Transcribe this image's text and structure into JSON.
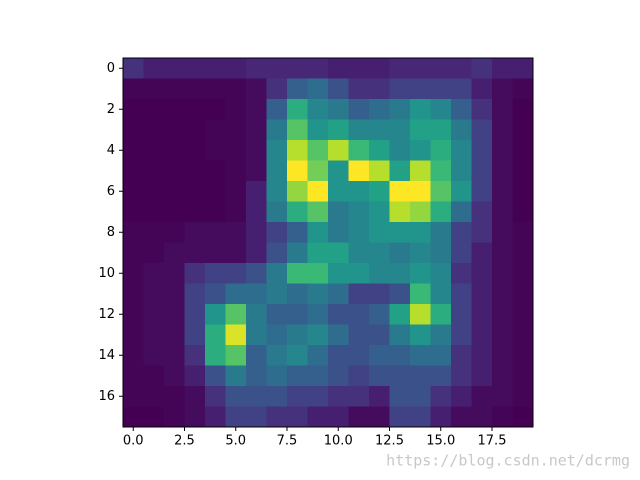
{
  "chart_data": {
    "type": "heatmap",
    "colormap": "viridis",
    "xlim": [
      -0.5,
      19.5
    ],
    "ylim": [
      17.5,
      -0.5
    ],
    "xticks": [
      {
        "value": 0,
        "label": "0.0"
      },
      2.5,
      {
        "value": 5,
        "label": "5.0"
      },
      7.5,
      {
        "value": 10,
        "label": "10.0"
      },
      12.5,
      {
        "value": 15,
        "label": "15.0"
      },
      17.5
    ],
    "yticks": [
      0,
      2,
      4,
      6,
      8,
      10,
      12,
      14,
      16
    ],
    "values": [
      [
        1.5,
        1,
        1,
        1,
        1,
        1,
        1.2,
        1.2,
        1.2,
        1.2,
        1,
        1,
        1,
        1.2,
        1.2,
        1.2,
        1.2,
        1.5,
        1,
        1
      ],
      [
        0.3,
        0.3,
        0.3,
        0.3,
        0.3,
        0.3,
        0.5,
        1.5,
        3,
        3.5,
        2.5,
        1.5,
        1.5,
        2,
        2,
        2,
        2,
        1,
        0.5,
        0.3
      ],
      [
        0.2,
        0.2,
        0.2,
        0.2,
        0.2,
        0.3,
        0.5,
        3,
        6,
        4.5,
        4,
        3,
        3.5,
        4,
        5,
        4.5,
        3,
        1.5,
        0.5,
        0.2
      ],
      [
        0.2,
        0.2,
        0.2,
        0.2,
        0.3,
        0.3,
        0.5,
        4,
        7,
        5,
        5.5,
        4.5,
        4.5,
        4.5,
        5.5,
        5.5,
        4,
        2,
        0.5,
        0.2
      ],
      [
        0.2,
        0.2,
        0.2,
        0.2,
        0.3,
        0.3,
        0.5,
        4.5,
        8.5,
        7,
        8.5,
        6.5,
        5.5,
        4.5,
        5,
        6,
        4.5,
        2,
        0.5,
        0.2
      ],
      [
        0.2,
        0.2,
        0.2,
        0.2,
        0.2,
        0.3,
        0.5,
        4.5,
        9.5,
        7.5,
        5,
        9.5,
        8.5,
        5.5,
        8.5,
        6.5,
        4.5,
        2,
        0.5,
        0.2
      ],
      [
        0.2,
        0.2,
        0.2,
        0.2,
        0.2,
        0.3,
        1,
        4.5,
        8,
        9.5,
        5,
        5,
        5.5,
        9.5,
        9.5,
        7,
        5,
        2,
        0.5,
        0.2
      ],
      [
        0.2,
        0.2,
        0.2,
        0.2,
        0.2,
        0.3,
        1,
        4,
        6,
        7,
        4,
        4.5,
        5,
        8.5,
        8,
        6,
        3.5,
        1.5,
        0.5,
        0.2
      ],
      [
        0.3,
        0.3,
        0.3,
        0.5,
        0.5,
        0.5,
        1,
        2,
        3,
        5,
        4,
        4.5,
        5,
        5,
        5,
        4,
        2,
        1.5,
        0.5,
        0.3
      ],
      [
        0.3,
        0.3,
        0.5,
        0.5,
        0.5,
        0.5,
        1,
        2.5,
        4,
        5.5,
        5.5,
        4.5,
        4.5,
        4,
        4.5,
        4,
        2,
        1,
        0.5,
        0.3
      ],
      [
        0.3,
        0.5,
        0.5,
        1.5,
        2,
        2,
        2.5,
        4,
        6.5,
        6.5,
        5,
        5,
        4.5,
        4.5,
        5,
        4.5,
        1.5,
        1,
        0.5,
        0.3
      ],
      [
        0.3,
        0.5,
        0.5,
        2,
        2.5,
        3.5,
        3.5,
        4,
        3.5,
        4,
        3.5,
        2,
        2,
        2.5,
        6.5,
        4.5,
        2,
        1,
        0.5,
        0.3
      ],
      [
        0.3,
        0.5,
        0.5,
        2,
        5,
        7,
        4,
        3,
        3,
        3.5,
        2.5,
        2.5,
        3,
        5.5,
        8.5,
        6,
        2,
        1,
        0.5,
        0.3
      ],
      [
        0.3,
        0.5,
        0.5,
        2,
        6,
        9,
        4,
        3.5,
        4,
        4.5,
        3.5,
        2.5,
        2.5,
        4,
        5,
        4,
        2,
        1,
        0.5,
        0.3
      ],
      [
        0.3,
        0.5,
        0.5,
        1.5,
        6,
        7,
        3,
        4,
        4.5,
        3.5,
        2.5,
        2.5,
        3,
        3,
        3.5,
        3.5,
        1.5,
        1,
        0.5,
        0.3
      ],
      [
        0.3,
        0.3,
        0.5,
        1,
        2.5,
        4,
        3,
        3.5,
        3,
        3,
        2.5,
        2,
        2.5,
        2.5,
        2.5,
        2.5,
        1.5,
        1,
        0.5,
        0.3
      ],
      [
        0.3,
        0.3,
        0.3,
        0.5,
        1.5,
        2.5,
        2.5,
        2.5,
        2,
        2,
        1.5,
        1.5,
        1,
        2.5,
        2.5,
        1.5,
        1,
        0.5,
        0.5,
        0.3
      ],
      [
        0.2,
        0.2,
        0.3,
        0.5,
        1,
        2,
        2,
        1.5,
        1.5,
        1,
        1,
        0.5,
        0.5,
        2,
        2,
        1,
        0.5,
        0.5,
        0.3,
        0.2
      ]
    ]
  },
  "watermark": "https://blog.csdn.net/dcrmg"
}
